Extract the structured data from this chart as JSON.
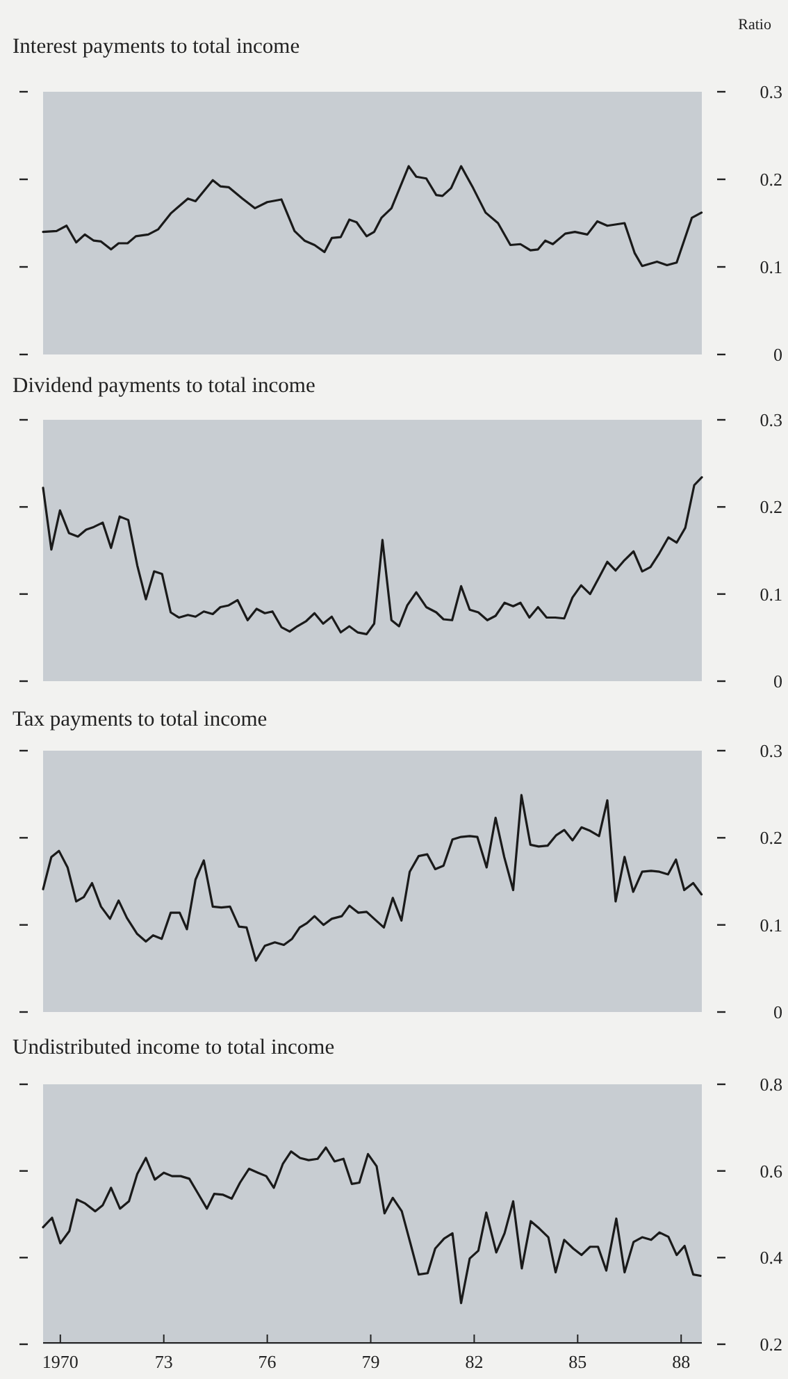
{
  "chart_data": [
    {
      "type": "line",
      "title": "Interest payments to total income",
      "ylabel": "Ratio",
      "xlim": [
        1969.5,
        1988.6
      ],
      "ylim": [
        0,
        0.3
      ],
      "yticks": [
        0,
        0.1,
        0.2,
        0.3
      ],
      "tick_labels": "y",
      "series": [
        {
          "color": "#1a1a1a",
          "x": [
            1969.5,
            1969.89,
            1970.18,
            1970.46,
            1970.71,
            1970.97,
            1971.18,
            1971.47,
            1971.69,
            1971.95,
            1972.19,
            1972.55,
            1972.84,
            1973.2,
            1973.7,
            1973.92,
            1974.42,
            1974.64,
            1974.88,
            1975.28,
            1975.64,
            1976.0,
            1976.41,
            1976.79,
            1977.08,
            1977.37,
            1977.66,
            1977.87,
            1978.13,
            1978.38,
            1978.59,
            1978.88,
            1979.1,
            1979.31,
            1979.6,
            1980.1,
            1980.32,
            1980.61,
            1980.9,
            1981.08,
            1981.33,
            1981.62,
            1981.97,
            1982.33,
            1982.69,
            1983.05,
            1983.34,
            1983.63,
            1983.85,
            1984.06,
            1984.28,
            1984.64,
            1984.92,
            1985.28,
            1985.57,
            1985.86,
            1986.36,
            1986.65,
            1986.87,
            1987.3,
            1987.59,
            1987.87,
            1988.31,
            1988.59
          ],
          "values": [
            0.14,
            0.141,
            0.147,
            0.128,
            0.137,
            0.13,
            0.129,
            0.12,
            0.127,
            0.127,
            0.135,
            0.137,
            0.143,
            0.161,
            0.178,
            0.175,
            0.199,
            0.192,
            0.191,
            0.178,
            0.167,
            0.174,
            0.177,
            0.141,
            0.13,
            0.125,
            0.117,
            0.133,
            0.134,
            0.154,
            0.151,
            0.135,
            0.14,
            0.156,
            0.167,
            0.215,
            0.203,
            0.201,
            0.182,
            0.181,
            0.19,
            0.215,
            0.19,
            0.162,
            0.15,
            0.125,
            0.126,
            0.119,
            0.12,
            0.13,
            0.126,
            0.138,
            0.14,
            0.137,
            0.152,
            0.147,
            0.15,
            0.116,
            0.101,
            0.106,
            0.102,
            0.105,
            0.156,
            0.162
          ]
        }
      ]
    },
    {
      "type": "line",
      "title": "Dividend payments to total income",
      "xlim": [
        1969.5,
        1988.6
      ],
      "ylim": [
        0,
        0.3
      ],
      "yticks": [
        0,
        0.1,
        0.2,
        0.3
      ],
      "tick_labels": "y",
      "series": [
        {
          "color": "#1a1a1a",
          "x": [
            1969.5,
            1969.74,
            1969.99,
            1970.25,
            1970.51,
            1970.75,
            1970.97,
            1971.23,
            1971.47,
            1971.72,
            1971.97,
            1972.23,
            1972.48,
            1972.72,
            1972.95,
            1973.2,
            1973.44,
            1973.7,
            1973.92,
            1974.16,
            1974.42,
            1974.64,
            1974.88,
            1975.14,
            1975.43,
            1975.69,
            1975.93,
            1976.15,
            1976.41,
            1976.65,
            1976.87,
            1977.13,
            1977.37,
            1977.62,
            1977.87,
            1978.13,
            1978.38,
            1978.62,
            1978.88,
            1979.1,
            1979.34,
            1979.6,
            1979.82,
            1980.06,
            1980.32,
            1980.61,
            1980.9,
            1981.11,
            1981.36,
            1981.62,
            1981.87,
            1982.12,
            1982.38,
            1982.62,
            1982.88,
            1983.13,
            1983.34,
            1983.6,
            1983.85,
            1984.1,
            1984.35,
            1984.61,
            1984.85,
            1985.1,
            1985.36,
            1985.62,
            1985.86,
            1986.1,
            1986.36,
            1986.62,
            1986.87,
            1987.11,
            1987.37,
            1987.63,
            1987.87,
            1988.12,
            1988.38,
            1988.6
          ],
          "values": [
            0.222,
            0.151,
            0.196,
            0.17,
            0.166,
            0.174,
            0.177,
            0.182,
            0.153,
            0.189,
            0.185,
            0.133,
            0.094,
            0.126,
            0.123,
            0.079,
            0.073,
            0.076,
            0.074,
            0.08,
            0.077,
            0.085,
            0.087,
            0.093,
            0.07,
            0.083,
            0.078,
            0.08,
            0.062,
            0.057,
            0.063,
            0.069,
            0.078,
            0.066,
            0.074,
            0.056,
            0.063,
            0.056,
            0.054,
            0.066,
            0.162,
            0.07,
            0.063,
            0.087,
            0.102,
            0.085,
            0.079,
            0.071,
            0.07,
            0.109,
            0.082,
            0.079,
            0.07,
            0.075,
            0.09,
            0.086,
            0.09,
            0.073,
            0.085,
            0.073,
            0.073,
            0.072,
            0.096,
            0.11,
            0.1,
            0.119,
            0.137,
            0.127,
            0.139,
            0.149,
            0.126,
            0.131,
            0.147,
            0.165,
            0.159,
            0.176,
            0.225,
            0.234
          ]
        }
      ]
    },
    {
      "type": "line",
      "title": "Tax payments to total income",
      "xlim": [
        1969.5,
        1988.6
      ],
      "ylim": [
        0,
        0.3
      ],
      "yticks": [
        0,
        0.1,
        0.2,
        0.3
      ],
      "tick_labels": "y",
      "series": [
        {
          "color": "#1a1a1a",
          "x": [
            1969.5,
            1969.74,
            1969.96,
            1970.21,
            1970.46,
            1970.68,
            1970.92,
            1971.18,
            1971.44,
            1971.69,
            1971.93,
            1972.22,
            1972.48,
            1972.69,
            1972.94,
            1973.2,
            1973.46,
            1973.67,
            1973.92,
            1974.16,
            1974.42,
            1974.67,
            1974.92,
            1975.18,
            1975.4,
            1975.67,
            1975.93,
            1976.22,
            1976.48,
            1976.72,
            1976.94,
            1977.15,
            1977.37,
            1977.63,
            1977.87,
            1978.16,
            1978.38,
            1978.64,
            1978.88,
            1979.1,
            1979.38,
            1979.64,
            1979.89,
            1980.13,
            1980.39,
            1980.64,
            1980.87,
            1981.11,
            1981.37,
            1981.62,
            1981.87,
            1982.09,
            1982.36,
            1982.62,
            1982.87,
            1983.13,
            1983.37,
            1983.63,
            1983.87,
            1984.13,
            1984.38,
            1984.61,
            1984.85,
            1985.11,
            1985.36,
            1985.62,
            1985.86,
            1986.1,
            1986.36,
            1986.61,
            1986.87,
            1987.13,
            1987.37,
            1987.62,
            1987.85,
            1988.09,
            1988.35,
            1988.59
          ],
          "values": [
            0.141,
            0.178,
            0.185,
            0.166,
            0.127,
            0.132,
            0.148,
            0.121,
            0.107,
            0.128,
            0.108,
            0.09,
            0.081,
            0.088,
            0.084,
            0.114,
            0.114,
            0.095,
            0.152,
            0.174,
            0.121,
            0.12,
            0.121,
            0.098,
            0.097,
            0.059,
            0.076,
            0.08,
            0.077,
            0.084,
            0.097,
            0.102,
            0.11,
            0.1,
            0.107,
            0.11,
            0.122,
            0.114,
            0.115,
            0.107,
            0.097,
            0.131,
            0.105,
            0.161,
            0.179,
            0.181,
            0.164,
            0.168,
            0.198,
            0.201,
            0.202,
            0.201,
            0.166,
            0.223,
            0.178,
            0.14,
            0.249,
            0.192,
            0.19,
            0.191,
            0.203,
            0.209,
            0.197,
            0.212,
            0.208,
            0.202,
            0.243,
            0.127,
            0.178,
            0.138,
            0.161,
            0.162,
            0.161,
            0.158,
            0.175,
            0.14,
            0.148,
            0.135
          ]
        }
      ]
    },
    {
      "type": "line",
      "title": "Undistributed income to total income",
      "xlim": [
        1969.5,
        1988.6
      ],
      "ylim": [
        0.2,
        0.8
      ],
      "yticks": [
        0.2,
        0.4,
        0.6,
        0.8
      ],
      "xticks": [
        1970,
        {
          "value": 1973,
          "label": "73"
        },
        {
          "value": 1976,
          "label": "76"
        },
        {
          "value": 1979,
          "label": "79"
        },
        {
          "value": 1982,
          "label": "82"
        },
        {
          "value": 1985,
          "label": "85"
        },
        {
          "value": 1988,
          "label": "88"
        }
      ],
      "series": [
        {
          "color": "#1a1a1a",
          "x": [
            1969.5,
            1969.76,
            1970.0,
            1970.26,
            1970.48,
            1970.72,
            1971.01,
            1971.23,
            1971.47,
            1971.73,
            1971.99,
            1972.23,
            1972.48,
            1972.74,
            1973.0,
            1973.24,
            1973.49,
            1973.74,
            1974.0,
            1974.25,
            1974.46,
            1974.72,
            1974.97,
            1975.21,
            1975.47,
            1975.73,
            1975.97,
            1976.19,
            1976.45,
            1976.69,
            1976.95,
            1977.2,
            1977.46,
            1977.7,
            1977.95,
            1978.21,
            1978.45,
            1978.67,
            1978.92,
            1979.17,
            1979.4,
            1979.64,
            1979.9,
            1980.15,
            1980.39,
            1980.65,
            1980.87,
            1981.13,
            1981.37,
            1981.62,
            1981.87,
            1982.12,
            1982.35,
            1982.64,
            1982.88,
            1983.13,
            1983.38,
            1983.64,
            1983.89,
            1984.15,
            1984.36,
            1984.61,
            1984.87,
            1985.11,
            1985.36,
            1985.59,
            1985.83,
            1986.12,
            1986.36,
            1986.62,
            1986.87,
            1987.13,
            1987.37,
            1987.63,
            1987.87,
            1988.1,
            1988.35,
            1988.56
          ],
          "values": [
            0.47,
            0.492,
            0.433,
            0.461,
            0.534,
            0.525,
            0.507,
            0.521,
            0.561,
            0.513,
            0.53,
            0.593,
            0.63,
            0.58,
            0.596,
            0.588,
            0.588,
            0.582,
            0.547,
            0.513,
            0.547,
            0.545,
            0.536,
            0.573,
            0.605,
            0.596,
            0.588,
            0.561,
            0.616,
            0.645,
            0.63,
            0.625,
            0.628,
            0.654,
            0.622,
            0.628,
            0.57,
            0.573,
            0.639,
            0.611,
            0.502,
            0.538,
            0.507,
            0.433,
            0.361,
            0.364,
            0.421,
            0.444,
            0.456,
            0.295,
            0.398,
            0.416,
            0.504,
            0.412,
            0.456,
            0.53,
            0.375,
            0.484,
            0.467,
            0.447,
            0.366,
            0.441,
            0.421,
            0.406,
            0.425,
            0.425,
            0.37,
            0.49,
            0.366,
            0.436,
            0.447,
            0.441,
            0.458,
            0.448,
            0.406,
            0.427,
            0.361,
            0.358
          ]
        }
      ]
    }
  ]
}
